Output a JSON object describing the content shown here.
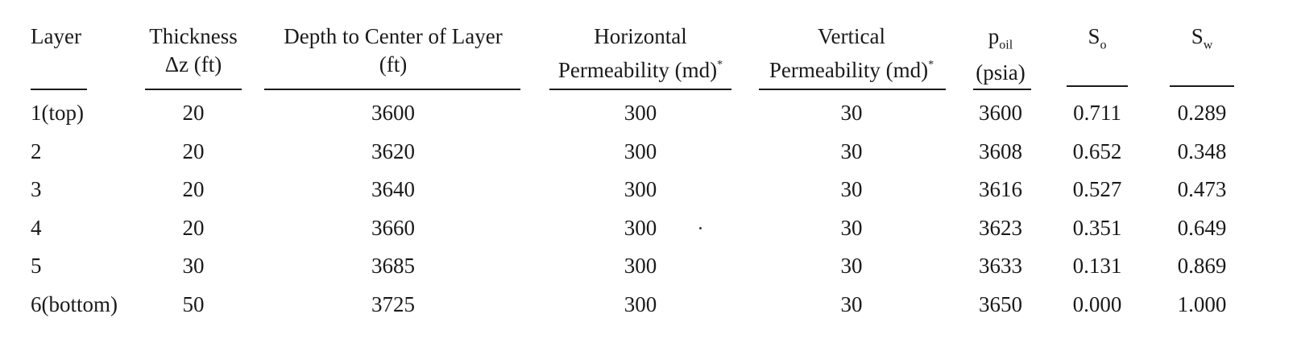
{
  "table": {
    "headers": {
      "layer": "Layer",
      "thickness_l1": "Thickness",
      "thickness_l2": "Δz (ft)",
      "depth_l1": "Depth to Center of Layer",
      "depth_l2": "(ft)",
      "horiz_l1": "Horizontal",
      "horiz_l2": "Permeability (md)",
      "horiz_mark": "*",
      "vert_l1": "Vertical",
      "vert_l2": "Permeability (md)",
      "vert_mark": "*",
      "poil_main": "p",
      "poil_sub": "oil",
      "poil_l2": "(psia)",
      "so_main": "S",
      "so_sub": "o",
      "sw_main": "S",
      "sw_sub": "w"
    },
    "rows": [
      {
        "layer": "1(top)",
        "thickness": "20",
        "depth": "3600",
        "horiz": "300",
        "vert": "30",
        "poil": "3600",
        "so": "0.711",
        "sw": "0.289"
      },
      {
        "layer": "2",
        "thickness": "20",
        "depth": "3620",
        "horiz": "300",
        "vert": "30",
        "poil": "3608",
        "so": "0.652",
        "sw": "0.348"
      },
      {
        "layer": "3",
        "thickness": "20",
        "depth": "3640",
        "horiz": "300",
        "vert": "30",
        "poil": "3616",
        "so": "0.527",
        "sw": "0.473"
      },
      {
        "layer": "4",
        "thickness": "20",
        "depth": "3660",
        "horiz": "300",
        "vert": "30",
        "poil": "3623",
        "so": "0.351",
        "sw": "0.649"
      },
      {
        "layer": "5",
        "thickness": "30",
        "depth": "3685",
        "horiz": "300",
        "vert": "30",
        "poil": "3633",
        "so": "0.131",
        "sw": "0.869"
      },
      {
        "layer": "6(bottom)",
        "thickness": "50",
        "depth": "3725",
        "horiz": "300",
        "vert": "30",
        "poil": "3650",
        "so": "0.000",
        "sw": "1.000"
      }
    ]
  }
}
